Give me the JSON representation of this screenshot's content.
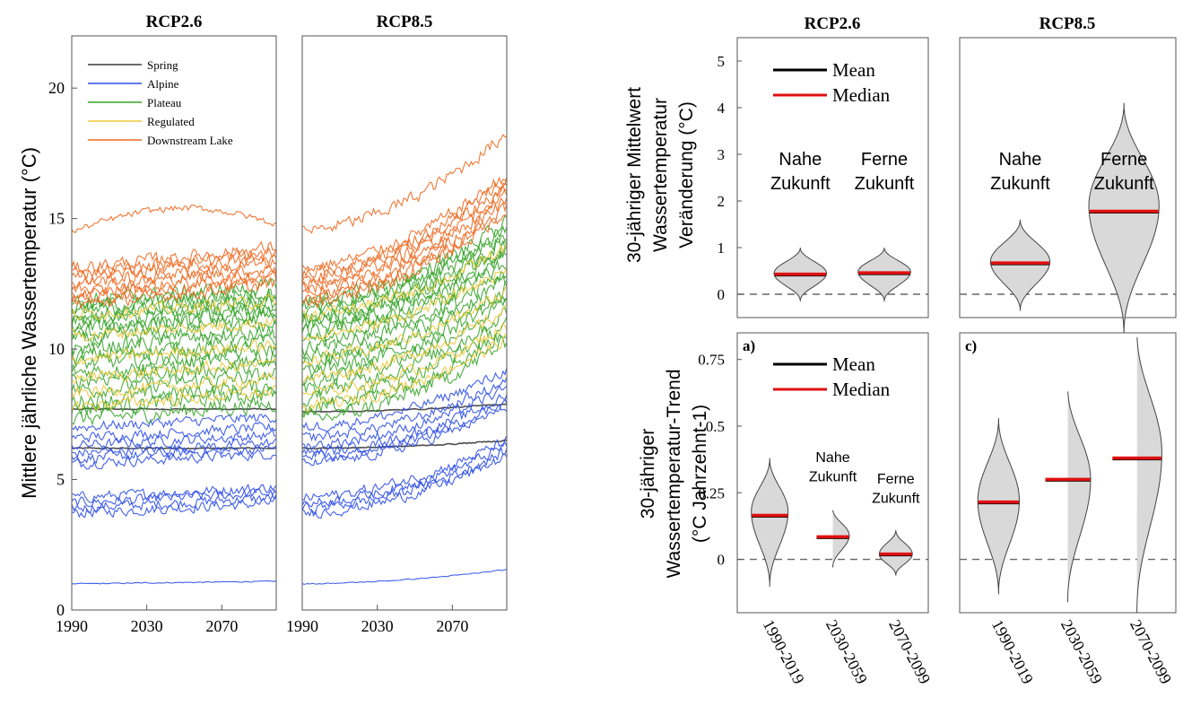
{
  "figure": {
    "left_ylabel": "Mittlere jährliche Wassertemperatur (°C)",
    "top_right_ylabel": [
      "30-jähriger Mittelwert",
      "Wassertemperatur",
      "Veränderung (°C)"
    ],
    "bottom_right_ylabel": [
      "30-jähriger",
      "Wassertemperatur-Trend",
      "(°C Jahrzehnt-1)"
    ],
    "colors": {
      "Spring": "#3a3a3a",
      "Alpine": "#2f4fe8",
      "Plateau": "#3aa52c",
      "Regulated": "#f0c93a",
      "Downstream Lake": "#f06a22",
      "mean": "#000000",
      "median": "#e01010",
      "violin_fill": "#d9d9d9"
    }
  },
  "chart_data": [
    {
      "type": "line",
      "title": "RCP2.6",
      "x_ticks": [
        "1990",
        "2030",
        "2070"
      ],
      "xlim": [
        1990,
        2099
      ],
      "ylim": [
        0,
        22
      ],
      "y_ticks": [
        "0",
        "5",
        "10",
        "15",
        "20"
      ],
      "legend_position": "top-left",
      "legend": [
        "Spring",
        "Alpine",
        "Plateau",
        "Regulated",
        "Downstream Lake"
      ],
      "series_groups": [
        {
          "name": "Spring",
          "levels": [
            6.2,
            7.7
          ],
          "start_trend": 0.05,
          "end_trend": 0.05,
          "noise": 0.04,
          "count": 2
        },
        {
          "name": "Alpine",
          "levels": [
            1.0,
            3.7,
            3.9,
            4.1,
            4.3,
            5.6,
            5.8,
            6.0,
            6.3,
            6.6,
            7.0
          ],
          "start_trend": 0.4,
          "end_trend": 0.4,
          "noise": 0.35,
          "count": 11
        },
        {
          "name": "Plateau",
          "levels": [
            7.3,
            7.7,
            8.0,
            8.4,
            8.8,
            9.1,
            9.4,
            9.7,
            10.0,
            10.3,
            10.6,
            10.8,
            11.0,
            11.2,
            11.4,
            11.6,
            11.8
          ],
          "start_trend": 0.6,
          "end_trend": 0.6,
          "noise": 0.55,
          "count": 17
        },
        {
          "name": "Regulated",
          "levels": [
            7.8,
            8.3,
            8.9,
            9.6,
            10.5,
            11.3
          ],
          "start_trend": 0.55,
          "end_trend": 0.55,
          "noise": 0.4,
          "count": 6
        },
        {
          "name": "Downstream Lake",
          "levels": [
            11.7,
            11.9,
            12.1,
            12.3,
            12.5,
            12.7,
            12.9,
            13.1,
            14.5
          ],
          "start_trend": 0.8,
          "end_trend": 0.8,
          "noise": 0.45,
          "count": 9
        }
      ]
    },
    {
      "type": "line",
      "title": "RCP8.5",
      "x_ticks": [
        "1990",
        "2030",
        "2070"
      ],
      "xlim": [
        1990,
        2099
      ],
      "ylim": [
        0,
        22
      ],
      "series_groups": [
        {
          "name": "Spring",
          "levels": [
            6.2,
            7.6
          ],
          "start_trend": 0.05,
          "end_trend": 0.3,
          "noise": 0.04,
          "count": 2
        },
        {
          "name": "Alpine",
          "levels": [
            1.0,
            3.7,
            3.9,
            4.1,
            4.3,
            5.6,
            5.8,
            6.0,
            6.3,
            6.6,
            7.0
          ],
          "start_trend": 0.4,
          "end_trend": 2.2,
          "noise": 0.35,
          "count": 11
        },
        {
          "name": "Plateau",
          "levels": [
            7.3,
            7.7,
            8.0,
            8.4,
            8.8,
            9.1,
            9.4,
            9.7,
            10.0,
            10.3,
            10.6,
            10.8,
            11.0,
            11.2,
            11.4,
            11.6,
            11.8
          ],
          "start_trend": 0.6,
          "end_trend": 3.0,
          "noise": 0.55,
          "count": 17
        },
        {
          "name": "Regulated",
          "levels": [
            7.8,
            8.3,
            8.9,
            9.6,
            10.5,
            11.3
          ],
          "start_trend": 0.55,
          "end_trend": 2.6,
          "noise": 0.4,
          "count": 6
        },
        {
          "name": "Downstream Lake",
          "levels": [
            11.7,
            11.9,
            12.1,
            12.3,
            12.5,
            12.7,
            12.9,
            13.1,
            14.5
          ],
          "start_trend": 0.8,
          "end_trend": 3.6,
          "noise": 0.45,
          "count": 9
        }
      ]
    },
    {
      "type": "violin",
      "title": "RCP2.6",
      "ylim": [
        -0.5,
        5.5
      ],
      "y_ticks": [
        "0",
        "1",
        "2",
        "3",
        "4",
        "5"
      ],
      "legend": [
        "Mean",
        "Median"
      ],
      "groups": [
        {
          "label": [
            "Nahe",
            "Zukunft"
          ],
          "min": -0.15,
          "max": 1.0,
          "mean": 0.43,
          "median": 0.43,
          "mode": 0.45,
          "width": 0.55
        },
        {
          "label": [
            "Ferne",
            "Zukunft"
          ],
          "min": -0.15,
          "max": 1.0,
          "mean": 0.46,
          "median": 0.46,
          "mode": 0.48,
          "width": 0.55
        }
      ]
    },
    {
      "type": "violin",
      "title": "RCP8.5",
      "ylim": [
        -0.5,
        5.5
      ],
      "groups": [
        {
          "label": [
            "Nahe",
            "Zukunft"
          ],
          "min": -0.35,
          "max": 1.6,
          "mean": 0.67,
          "median": 0.67,
          "mode": 0.7,
          "width": 0.55
        },
        {
          "label": [
            "Ferne",
            "Zukunft"
          ],
          "min": -0.85,
          "max": 4.1,
          "mean": 1.78,
          "median": 1.78,
          "mode": 1.9,
          "width": 0.65
        }
      ]
    },
    {
      "type": "violin",
      "panel_label": "a)",
      "ylim": [
        -0.2,
        0.85
      ],
      "y_ticks": [
        "0",
        "0.25",
        "0.5",
        "0.75"
      ],
      "legend": [
        "Mean",
        "Median"
      ],
      "x_ticks": [
        "1990-2019",
        "2030-2059",
        "2070-2099"
      ],
      "groups": [
        {
          "label": [
            "",
            ""
          ],
          "min": -0.1,
          "max": 0.38,
          "mean": 0.165,
          "median": 0.165,
          "mode": 0.18,
          "width": 0.5
        },
        {
          "label": [
            "Nahe",
            "Zukunft"
          ],
          "min": -0.03,
          "max": 0.19,
          "mean": 0.085,
          "median": 0.085,
          "mode": 0.09,
          "width": 0.45
        },
        {
          "label": [
            "Ferne",
            "Zukunft"
          ],
          "min": -0.06,
          "max": 0.11,
          "mean": 0.02,
          "median": 0.02,
          "mode": 0.02,
          "width": 0.45
        }
      ]
    },
    {
      "type": "violin",
      "panel_label": "c)",
      "ylim": [
        -0.2,
        0.85
      ],
      "x_ticks": [
        "1990-2019",
        "2030-2059",
        "2070-2099"
      ],
      "groups": [
        {
          "min": -0.13,
          "max": 0.53,
          "mean": 0.215,
          "median": 0.215,
          "mode": 0.22,
          "width": 0.5
        },
        {
          "min": -0.16,
          "max": 0.65,
          "mean": 0.3,
          "median": 0.3,
          "mode": 0.3,
          "width": 0.55
        },
        {
          "min": -0.2,
          "max": 0.86,
          "mean": 0.38,
          "median": 0.38,
          "mode": 0.4,
          "width": 0.6
        }
      ]
    }
  ]
}
